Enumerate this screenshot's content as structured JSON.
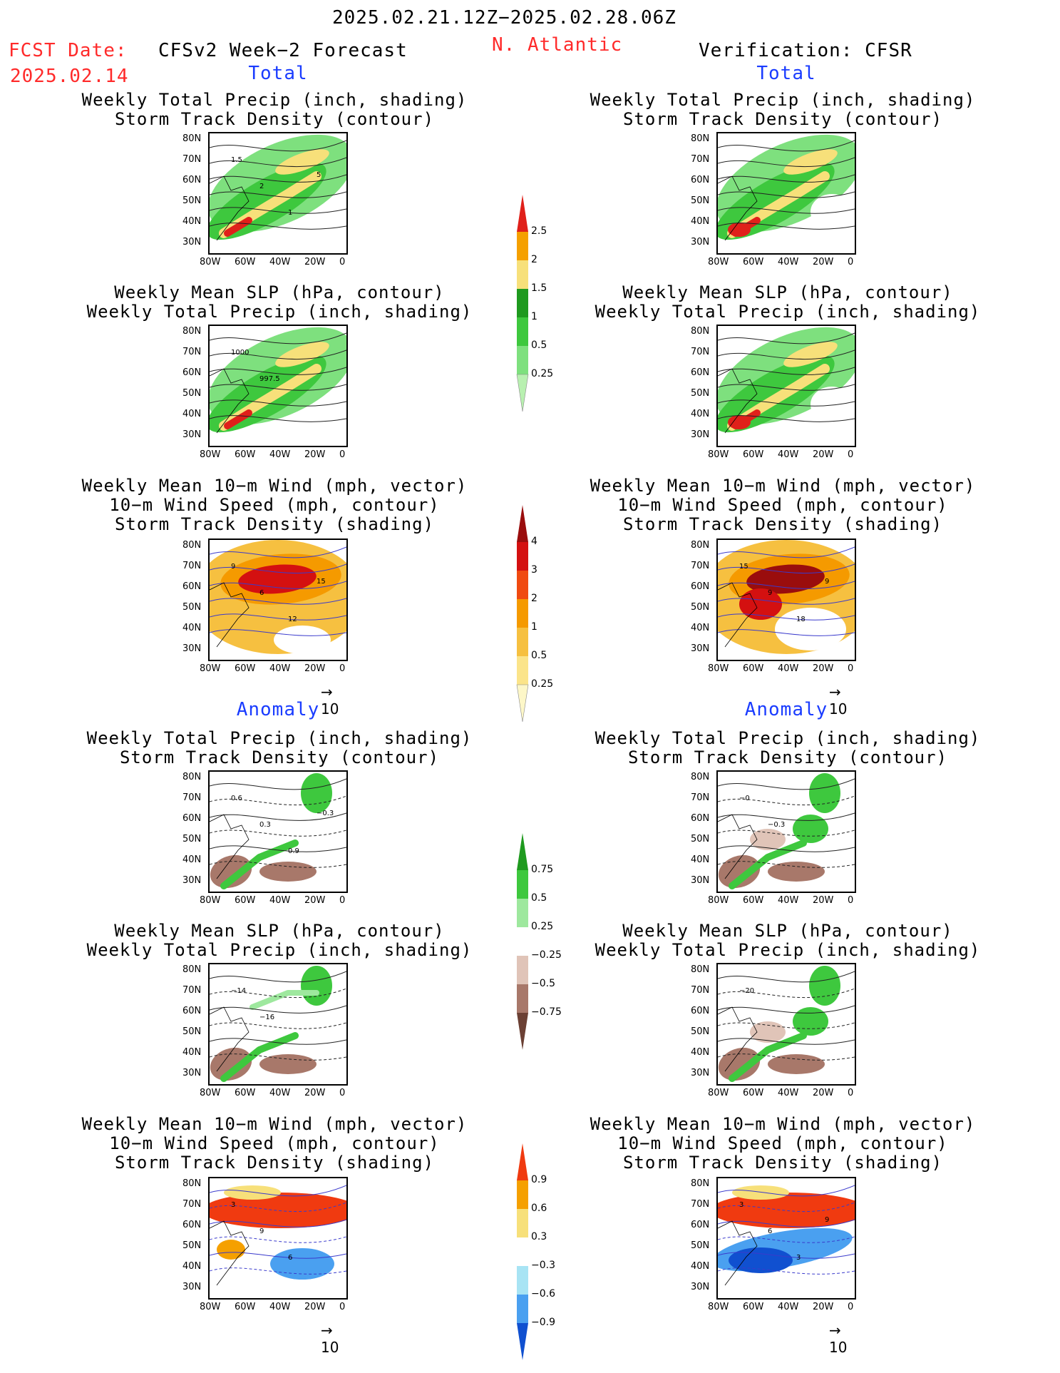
{
  "header": {
    "period": "2025.02.21.12Z−2025.02.28.06Z",
    "fcst_date_label": "FCST Date:",
    "fcst_date_value": "2025.02.14",
    "left_title": "CFSv2 Week−2 Forecast",
    "region": "N. Atlantic",
    "right_title": "Verification: CFSR"
  },
  "sections": {
    "total": "Total",
    "anomaly": "Anomaly"
  },
  "titles": {
    "precip_storm": [
      "Weekly Total Precip (inch, shading)",
      "Storm Track Density (contour)"
    ],
    "slp_precip": [
      "Weekly Mean SLP (hPa, contour)",
      "Weekly Total Precip (inch, shading)"
    ],
    "wind_storm": [
      "Weekly Mean 10−m Wind (mph, vector)",
      "10−m Wind Speed (mph, contour)",
      "Storm Track Density (shading)"
    ]
  },
  "axes": {
    "lat_ticks": [
      "80N",
      "70N",
      "60N",
      "50N",
      "40N",
      "30N"
    ],
    "lon_ticks": [
      "80W",
      "60W",
      "40W",
      "20W",
      "0"
    ]
  },
  "vector_ref": "10",
  "contour_labels": {
    "fc_total_precip": [
      "1.5",
      "2",
      "1",
      "5"
    ],
    "fc_total_slp": [
      "1000",
      "997.5"
    ],
    "fc_total_wind": [
      "9",
      "6",
      "12",
      "15"
    ],
    "ver_total_wind": [
      "15",
      "9",
      "18",
      "9"
    ],
    "fc_anom_precip": [
      "0.6",
      "0.3",
      "0.9",
      "−0.3"
    ],
    "ver_anom_precip": [
      "−0",
      "−0.3"
    ],
    "fc_anom_slp": [
      "−14",
      "−16"
    ],
    "ver_anom_slp": [
      "−20"
    ],
    "fc_anom_wind": [
      "3",
      "9",
      "6"
    ],
    "ver_anom_wind": [
      "3",
      "6",
      "3",
      "9"
    ]
  },
  "colorbars": {
    "precip_total": {
      "labels": [
        "2.5",
        "2",
        "1.5",
        "1",
        "0.5",
        "0.25"
      ],
      "colors": [
        "#e0201a",
        "#f5a000",
        "#f7e07a",
        "#1f9a1f",
        "#3ec83e",
        "#7ee07e",
        "#b8f0b0"
      ]
    },
    "storm_total": {
      "labels": [
        "4",
        "3",
        "2",
        "1",
        "0.5",
        "0.25"
      ],
      "colors": [
        "#9a0d0d",
        "#d41010",
        "#f04a10",
        "#f59a00",
        "#f6c040",
        "#fbe48a",
        "#fdf7c8"
      ]
    },
    "precip_anom": {
      "labels": [
        "0.75",
        "0.5",
        "0.25",
        "−0.25",
        "−0.5",
        "−0.75"
      ],
      "colors": [
        "#1f9a1f",
        "#3ec83e",
        "#9ee89e",
        "#ffffff",
        "#e0c4b8",
        "#a8786a",
        "#6b4034"
      ]
    },
    "storm_anom": {
      "labels": [
        "0.9",
        "0.6",
        "0.3",
        "−0.3",
        "−0.6",
        "−0.9"
      ],
      "colors": [
        "#f03a10",
        "#f5a000",
        "#f7e07a",
        "#ffffff",
        "#a8e4f4",
        "#4aa0f0",
        "#1050d0"
      ]
    }
  },
  "chart_data": [
    {
      "type": "heatmap",
      "panel": "forecast-total-precip-storm",
      "title": "Weekly Total Precip (inch, shading) / Storm Track Density (contour)",
      "xlabel": "",
      "ylabel": "",
      "xlim": [
        -80,
        0
      ],
      "ylim": [
        25,
        85
      ]
    },
    {
      "type": "heatmap",
      "panel": "verification-total-precip-storm",
      "title": "Weekly Total Precip (inch, shading) / Storm Track Density (contour)",
      "xlabel": "",
      "ylabel": "",
      "xlim": [
        -80,
        0
      ],
      "ylim": [
        25,
        85
      ]
    },
    {
      "type": "heatmap",
      "panel": "forecast-total-slp-precip",
      "title": "Weekly Mean SLP (hPa, contour) / Weekly Total Precip (inch, shading)",
      "xlabel": "",
      "ylabel": "",
      "xlim": [
        -80,
        0
      ],
      "ylim": [
        25,
        85
      ]
    },
    {
      "type": "heatmap",
      "panel": "verification-total-slp-precip",
      "title": "Weekly Mean SLP (hPa, contour) / Weekly Total Precip (inch, shading)",
      "xlabel": "",
      "ylabel": "",
      "xlim": [
        -80,
        0
      ],
      "ylim": [
        25,
        85
      ]
    },
    {
      "type": "heatmap",
      "panel": "forecast-total-wind-storm",
      "title": "Weekly Mean 10-m Wind (mph, vector) / 10-m Wind Speed (mph, contour) / Storm Track Density (shading)",
      "xlabel": "",
      "ylabel": "",
      "xlim": [
        -80,
        0
      ],
      "ylim": [
        25,
        85
      ]
    },
    {
      "type": "heatmap",
      "panel": "verification-total-wind-storm",
      "title": "Weekly Mean 10-m Wind (mph, vector) / 10-m Wind Speed (mph, contour) / Storm Track Density (shading)",
      "xlabel": "",
      "ylabel": "",
      "xlim": [
        -80,
        0
      ],
      "ylim": [
        25,
        85
      ]
    },
    {
      "type": "heatmap",
      "panel": "forecast-anomaly-precip-storm",
      "title": "Weekly Total Precip (inch, shading) / Storm Track Density (contour)",
      "xlabel": "",
      "ylabel": "",
      "xlim": [
        -80,
        0
      ],
      "ylim": [
        25,
        85
      ]
    },
    {
      "type": "heatmap",
      "panel": "verification-anomaly-precip-storm",
      "title": "Weekly Total Precip (inch, shading) / Storm Track Density (contour)",
      "xlabel": "",
      "ylabel": "",
      "xlim": [
        -80,
        0
      ],
      "ylim": [
        25,
        85
      ]
    },
    {
      "type": "heatmap",
      "panel": "forecast-anomaly-slp-precip",
      "title": "Weekly Mean SLP (hPa, contour) / Weekly Total Precip (inch, shading)",
      "xlabel": "",
      "ylabel": "",
      "xlim": [
        -80,
        0
      ],
      "ylim": [
        25,
        85
      ]
    },
    {
      "type": "heatmap",
      "panel": "verification-anomaly-slp-precip",
      "title": "Weekly Mean SLP (hPa, contour) / Weekly Total Precip (inch, shading)",
      "xlabel": "",
      "ylabel": "",
      "xlim": [
        -80,
        0
      ],
      "ylim": [
        25,
        85
      ]
    },
    {
      "type": "heatmap",
      "panel": "forecast-anomaly-wind-storm",
      "title": "Weekly Mean 10-m Wind (mph, vector) / 10-m Wind Speed (mph, contour) / Storm Track Density (shading)",
      "xlabel": "",
      "ylabel": "",
      "xlim": [
        -80,
        0
      ],
      "ylim": [
        25,
        85
      ]
    },
    {
      "type": "heatmap",
      "panel": "verification-anomaly-wind-storm",
      "title": "Weekly Mean 10-m Wind (mph, vector) / 10-m Wind Speed (mph, contour) / Storm Track Density (shading)",
      "xlabel": "",
      "ylabel": "",
      "xlim": [
        -80,
        0
      ],
      "ylim": [
        25,
        85
      ]
    }
  ]
}
